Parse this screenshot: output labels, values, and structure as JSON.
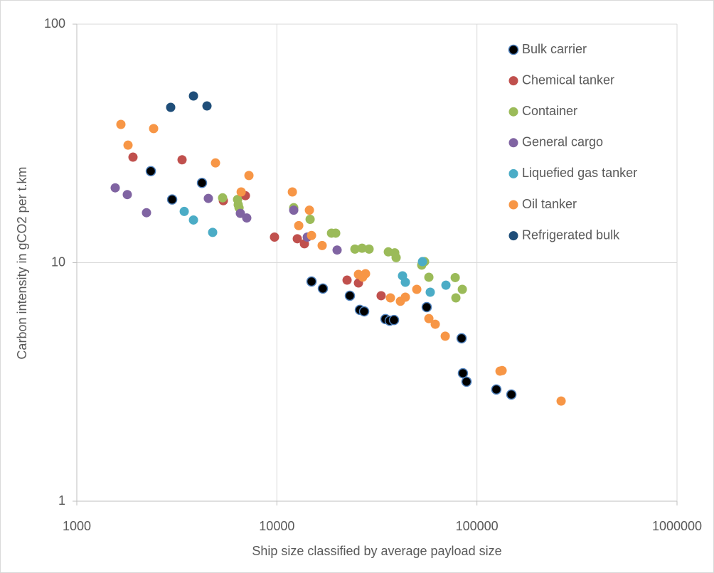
{
  "chart_data": {
    "type": "scatter",
    "x_label": "Ship size classified by average payload size",
    "y_label": "Carbon intensity in gCO2 per t.km",
    "xscale": "log",
    "yscale": "log",
    "xlim": [
      1000,
      1000000
    ],
    "xticks": [
      1000,
      10000,
      100000,
      1000000
    ],
    "ylim": [
      1,
      100
    ],
    "yticks": [
      1,
      10,
      100
    ],
    "grid": true,
    "legend": "upper right",
    "series": [
      {
        "name": "Bulk carrier",
        "color": "#000000",
        "edgecolor": "#4f81bd",
        "x": [
          2344,
          2996,
          4223,
          14900,
          16980,
          23170,
          26000,
          27300,
          34900,
          36650,
          38500,
          56100,
          83800,
          85100,
          88700,
          125000,
          148600
        ],
        "values": [
          24.2,
          18.4,
          21.6,
          8.34,
          7.79,
          7.27,
          6.34,
          6.25,
          5.8,
          5.71,
          5.75,
          6.51,
          4.82,
          3.44,
          3.17,
          2.94,
          2.8
        ]
      },
      {
        "name": "Chemical tanker",
        "color": "#c0504d",
        "x": [
          1909,
          3358,
          5400,
          6960,
          9730,
          12650,
          13730,
          22430,
          25570,
          33200
        ],
        "values": [
          27.7,
          27.0,
          18.2,
          19.1,
          12.8,
          12.6,
          12.0,
          8.45,
          8.22,
          7.27
        ]
      },
      {
        "name": "Container",
        "color": "#9bbb59",
        "x": [
          5355,
          6360,
          6410,
          6470,
          12140,
          14660,
          18750,
          19680,
          24550,
          26650,
          28900,
          36060,
          38820,
          39450,
          52970,
          54740,
          57500,
          77870,
          78470,
          84500
        ],
        "values": [
          18.7,
          18.4,
          17.5,
          17.0,
          17.0,
          15.2,
          13.3,
          13.3,
          11.4,
          11.5,
          11.4,
          11.1,
          11.0,
          10.5,
          9.77,
          10.1,
          8.69,
          8.66,
          7.12,
          7.73
        ]
      },
      {
        "name": "General cargo",
        "color": "#8064a2",
        "x": [
          1556,
          1788,
          2230,
          4545,
          6570,
          7070,
          12140,
          14190,
          20000
        ],
        "values": [
          20.6,
          19.3,
          16.2,
          18.6,
          16.1,
          15.4,
          16.6,
          12.8,
          11.3
        ]
      },
      {
        "name": "Liquefied gas tanker",
        "color": "#4bacc6",
        "x": [
          3443,
          3829,
          4775,
          42460,
          43870,
          53420,
          58420,
          69980
        ],
        "values": [
          16.4,
          15.1,
          13.4,
          8.81,
          8.28,
          10.1,
          7.52,
          8.05
        ]
      },
      {
        "name": "Oil tanker",
        "color": "#f79646",
        "x": [
          1661,
          1803,
          2421,
          4934,
          6630,
          7250,
          11950,
          12860,
          14540,
          14900,
          16840,
          25570,
          26850,
          27740,
          36950,
          41440,
          43870,
          50030,
          57500,
          61890,
          69420,
          130400,
          133600,
          263500
        ],
        "values": [
          38.0,
          31.1,
          36.5,
          26.2,
          19.8,
          23.2,
          19.8,
          14.3,
          16.6,
          13.0,
          11.8,
          8.93,
          8.7,
          8.99,
          7.12,
          6.89,
          7.17,
          7.73,
          5.83,
          5.52,
          4.92,
          3.51,
          3.53,
          2.63
        ]
      },
      {
        "name": "Refrigerated bulk",
        "color": "#1f4e79",
        "x": [
          2946,
          3829,
          4473
        ],
        "values": [
          44.8,
          50.0,
          45.4
        ]
      }
    ]
  }
}
